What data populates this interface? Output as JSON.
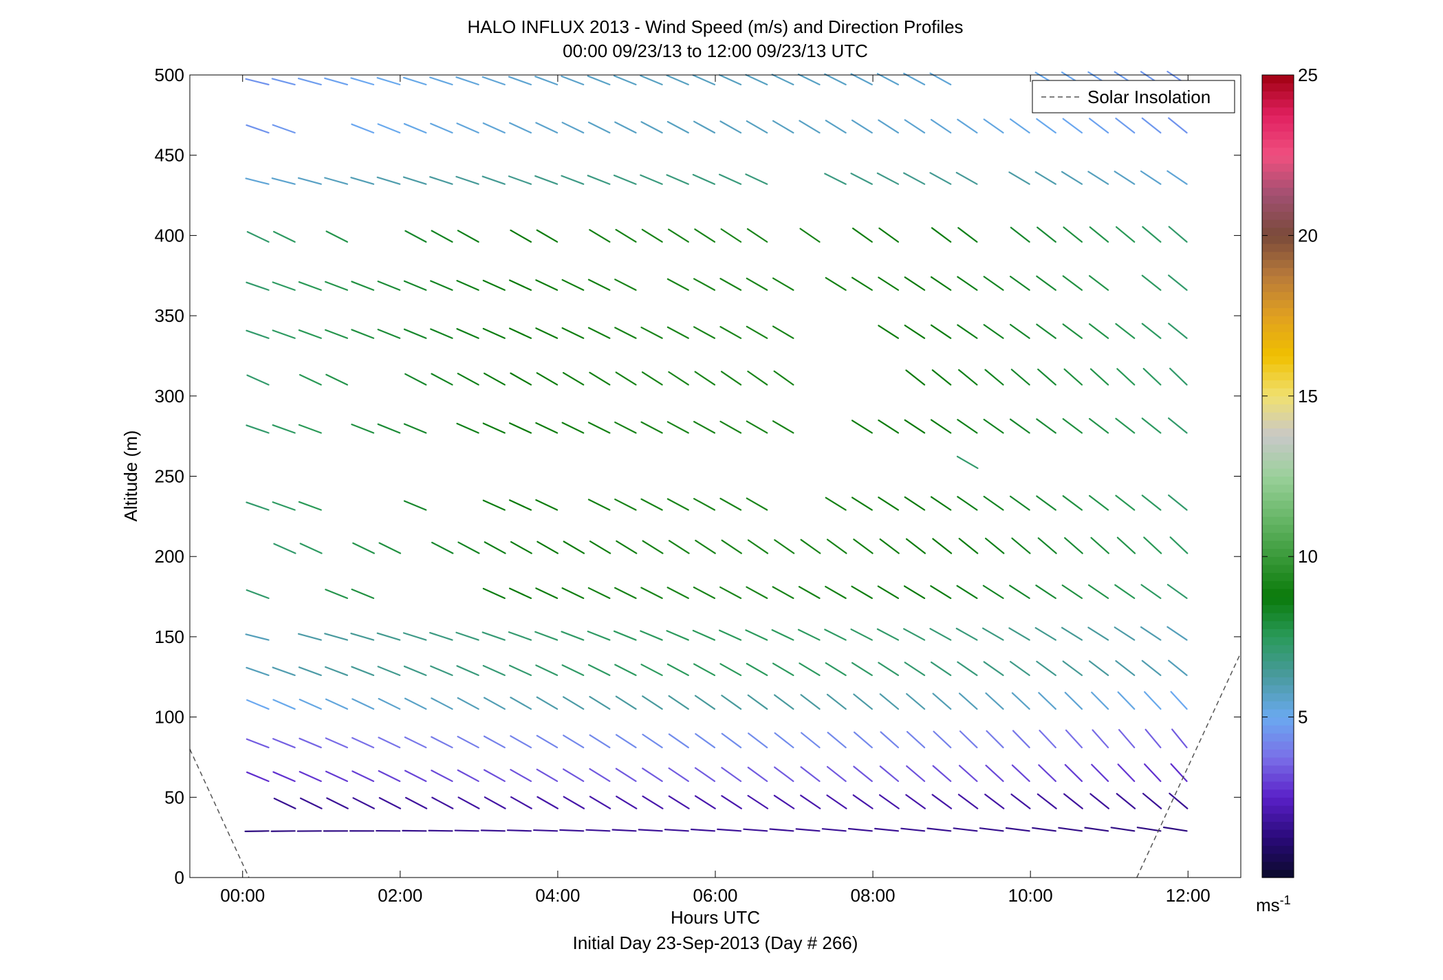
{
  "chart_data": {
    "type": "wind_barb_profile",
    "title": "HALO INFLUX 2013 - Wind Speed (m/s) and Direction Profiles",
    "subtitle": "00:00 09/23/13 to 12:00 09/23/13  UTC",
    "xlabel": "Hours UTC",
    "xlabel2": "Initial Day 23-Sep-2013 (Day # 266)",
    "ylabel": "Altitude (m)",
    "xlim": [
      -0.67,
      12.67
    ],
    "ylim": [
      0,
      500
    ],
    "x_ticks": [
      {
        "value": 0,
        "label": "00:00"
      },
      {
        "value": 2,
        "label": "02:00"
      },
      {
        "value": 4,
        "label": "04:00"
      },
      {
        "value": 6,
        "label": "06:00"
      },
      {
        "value": 8,
        "label": "08:00"
      },
      {
        "value": 10,
        "label": "10:00"
      },
      {
        "value": 12,
        "label": "12:00"
      }
    ],
    "y_ticks": [
      {
        "value": 0,
        "label": "0"
      },
      {
        "value": 50,
        "label": "50"
      },
      {
        "value": 100,
        "label": "100"
      },
      {
        "value": 150,
        "label": "150"
      },
      {
        "value": 200,
        "label": "200"
      },
      {
        "value": 250,
        "label": "250"
      },
      {
        "value": 300,
        "label": "300"
      },
      {
        "value": 350,
        "label": "350"
      },
      {
        "value": 400,
        "label": "400"
      },
      {
        "value": 450,
        "label": "450"
      },
      {
        "value": 500,
        "label": "500"
      }
    ],
    "colorbar": {
      "range": [
        0,
        25
      ],
      "ticks": [
        {
          "value": 5,
          "label": "5"
        },
        {
          "value": 10,
          "label": "10"
        },
        {
          "value": 15,
          "label": "15"
        },
        {
          "value": 20,
          "label": "20"
        },
        {
          "value": 25,
          "label": "25"
        }
      ],
      "unit_label": "ms",
      "unit_exponent": "-1",
      "colors": [
        "#0a0a2a",
        "#2a0a7a",
        "#5a20c8",
        "#7a70e8",
        "#6aaaf0",
        "#4a9aa0",
        "#2a9a5a",
        "#0a7a0a",
        "#3a9a3a",
        "#6ab86a",
        "#9ad09a",
        "#c8c8c8",
        "#f0e070",
        "#f0c000",
        "#e0a020",
        "#b87a3a",
        "#7a4a3a",
        "#a05070",
        "#f05080",
        "#e02060",
        "#a00010"
      ]
    },
    "legend": {
      "entries": [
        "Solar Insolation"
      ],
      "placement": "top-right",
      "style": "dashed"
    },
    "solar_insolation": [
      {
        "x": [
          -0.67,
          0.08
        ],
        "y": [
          80,
          0
        ]
      },
      {
        "x": [
          11.35,
          12.67
        ],
        "y": [
          0,
          140
        ]
      }
    ],
    "altitudes": [
      29,
      43,
      60,
      81,
      105,
      126,
      148,
      174,
      202,
      229,
      255,
      277,
      307,
      336,
      366,
      396,
      432,
      464,
      494
    ],
    "time_start": 0.33,
    "time_step": 0.333,
    "time_count": 36,
    "profiles": [
      {
        "altitude": 29,
        "t0": 0.33,
        "speed": 1.5,
        "dir": 272,
        "drift": 10,
        "gaps": []
      },
      {
        "altitude": 43,
        "t0": 0.67,
        "speed": 1.8,
        "dir": 300,
        "drift": 15,
        "gaps": []
      },
      {
        "altitude": 60,
        "t0": 0.33,
        "speed": 3.0,
        "dir": 300,
        "drift": 25,
        "gaps": []
      },
      {
        "altitude": 81,
        "t0": 0.33,
        "speed": 3.8,
        "dir": 300,
        "drift": 30,
        "gaps": []
      },
      {
        "altitude": 105,
        "t0": 0.33,
        "speed": 5.5,
        "dir": 300,
        "drift": 25,
        "gaps": []
      },
      {
        "altitude": 126,
        "t0": 0.33,
        "speed": 6.5,
        "dir": 295,
        "drift": 20,
        "gaps": []
      },
      {
        "altitude": 148,
        "t0": 0.33,
        "speed": 6.5,
        "dir": 290,
        "drift": 20,
        "gaps": [
          1
        ]
      },
      {
        "altitude": 174,
        "t0": 0.33,
        "speed": 8.0,
        "dir": 295,
        "drift": 15,
        "gaps": [
          1,
          2,
          5,
          6,
          7,
          8
        ]
      },
      {
        "altitude": 202,
        "t0": 0.67,
        "speed": 8.0,
        "dir": 300,
        "drift": 20,
        "gaps": [
          2,
          5
        ]
      },
      {
        "altitude": 229,
        "t0": 0.33,
        "speed": 8.0,
        "dir": 295,
        "drift": 20,
        "gaps": [
          3,
          4,
          5,
          7,
          8,
          12,
          20,
          21
        ]
      },
      {
        "altitude": 255,
        "t0": 9.33,
        "speed": 8.0,
        "dir": 300,
        "drift": 0,
        "gaps": []
      },
      {
        "altitude": 277,
        "t0": 0.33,
        "speed": 8.0,
        "dir": 295,
        "drift": 20,
        "gaps": [
          3,
          7,
          21,
          22
        ]
      },
      {
        "altitude": 307,
        "t0": 0.33,
        "speed": 8.0,
        "dir": 300,
        "drift": 20,
        "gaps": [
          1,
          4,
          5,
          21,
          22,
          23,
          24
        ]
      },
      {
        "altitude": 336,
        "t0": 0.33,
        "speed": 8.0,
        "dir": 295,
        "drift": 20,
        "gaps": [
          21,
          22,
          23
        ]
      },
      {
        "altitude": 366,
        "t0": 0.33,
        "speed": 8.0,
        "dir": 295,
        "drift": 20,
        "gaps": [
          15,
          21,
          33
        ]
      },
      {
        "altitude": 396,
        "t0": 0.33,
        "speed": 8.0,
        "dir": 300,
        "drift": 15,
        "gaps": [
          2,
          4,
          5,
          9,
          12,
          20,
          22,
          25,
          28
        ]
      },
      {
        "altitude": 432,
        "t0": 0.33,
        "speed": 6.0,
        "dir": 290,
        "drift": 20,
        "gaps": [
          20,
          21,
          28
        ]
      },
      {
        "altitude": 464,
        "t0": 0.33,
        "speed": 5.0,
        "dir": 295,
        "drift": 20,
        "gaps": [
          2,
          3
        ]
      },
      {
        "altitude": 494,
        "t0": 0.33,
        "speed": 5.0,
        "dir": 290,
        "drift": 20,
        "gaps": [
          27,
          28,
          29
        ]
      }
    ]
  }
}
